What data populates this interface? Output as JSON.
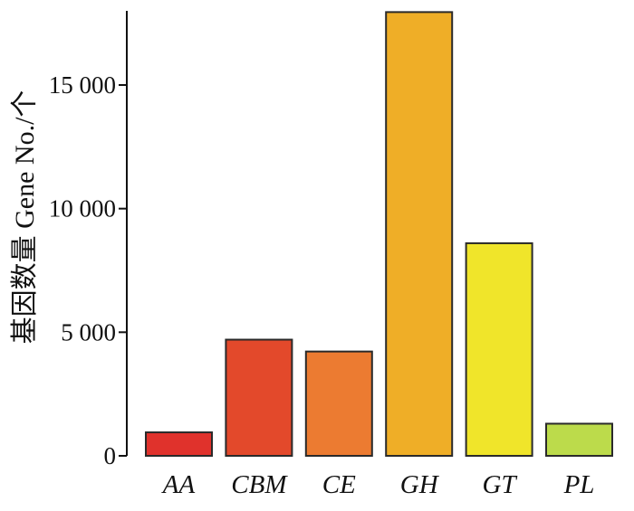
{
  "chart_data": {
    "type": "bar",
    "ylabel": "基因数量 Gene No./个",
    "xlabel": "",
    "title": "",
    "ylim": [
      0,
      18000
    ],
    "yticks": [
      0,
      5000,
      10000,
      15000
    ],
    "ytick_labels": [
      "0",
      "5 000",
      "10 000",
      "15 000"
    ],
    "categories": [
      "AA",
      "CBM",
      "CE",
      "GH",
      "GT",
      "PL"
    ],
    "values": [
      950,
      4700,
      4220,
      17950,
      8600,
      1300
    ],
    "colors": [
      "#e0322c",
      "#e3492b",
      "#ec7b31",
      "#efae27",
      "#f0e52a",
      "#bcdb4b"
    ],
    "grid": false,
    "legend": "none"
  }
}
